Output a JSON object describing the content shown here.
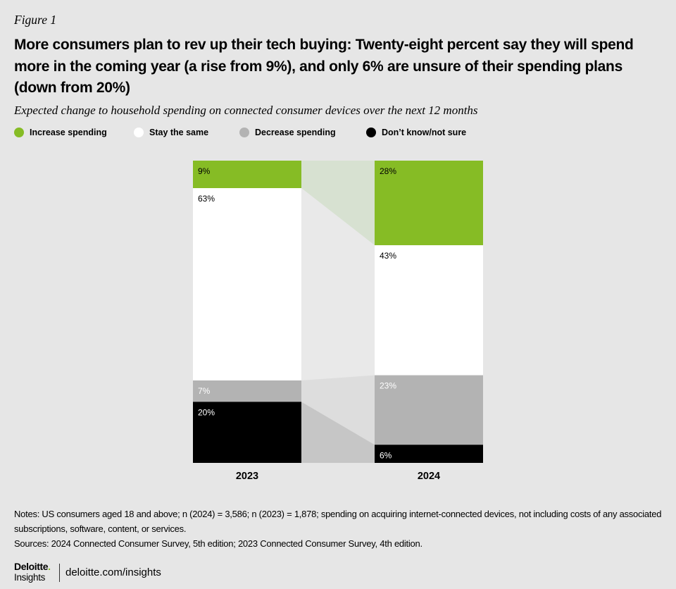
{
  "figure_label": "Figure 1",
  "chart_data": {
    "type": "bar",
    "stacked": true,
    "title": "More consumers plan to rev up their tech buying: Twenty-eight percent say they will spend more in the coming year (a rise from 9%), and only 6% are unsure of their spending plans (down from 20%)",
    "subtitle": "Expected change to household spending on connected consumer devices over the next 12 months",
    "categories": [
      "2023",
      "2024"
    ],
    "value_suffix": "%",
    "series": [
      {
        "name": "Increase spending",
        "values": [
          9,
          28
        ],
        "color": "#86bc25",
        "label_color": "#000000",
        "band_color": "#d7e1d1"
      },
      {
        "name": "Stay the same",
        "values": [
          63,
          43
        ],
        "color": "#ffffff",
        "label_color": "#000000",
        "band_color": "#e9e9e9"
      },
      {
        "name": "Decrease spending",
        "values": [
          7,
          23
        ],
        "color": "#b3b3b3",
        "label_color": "#ffffff",
        "band_color": "#dddddd"
      },
      {
        "name": "Don’t know/not sure",
        "values": [
          20,
          6
        ],
        "color": "#000000",
        "label_color": "#ffffff",
        "band_color": "#c6c6c6"
      }
    ],
    "xlabel": "",
    "ylabel": "",
    "legend_position": "top-left"
  },
  "notes": "Notes: US consumers aged 18 and above; n (2024) = 3,586; n (2023) = 1,878; spending on acquiring internet-connected devices, not including costs of any associated subscriptions, software, content, or services.",
  "sources": "Sources: 2024 Connected Consumer Survey, 5th edition; 2023 Connected Consumer Survey, 4th edition.",
  "footer": {
    "brand": "Deloitte",
    "brand_dot": ".",
    "brand_sub": "Insights",
    "url": "deloitte.com/insights"
  }
}
